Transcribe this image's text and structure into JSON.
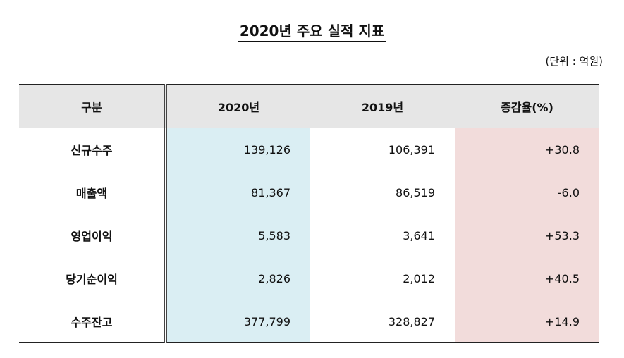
{
  "header": {
    "title": "2020년 주요 실적 지표",
    "unit": "(단위 : 억원)"
  },
  "table": {
    "columns": [
      "구분",
      "2020년",
      "2019년",
      "증감율(%)"
    ],
    "rows": [
      [
        "신규수주",
        "139,126",
        "106,391",
        "+30.8"
      ],
      [
        "매출액",
        "81,367",
        "86,519",
        "-6.0"
      ],
      [
        "영업이익",
        "5,583",
        "3,641",
        "+53.3"
      ],
      [
        "당기순이익",
        "2,826",
        "2,012",
        "+40.5"
      ],
      [
        "수주잔고",
        "377,799",
        "328,827",
        "+14.9"
      ]
    ]
  }
}
